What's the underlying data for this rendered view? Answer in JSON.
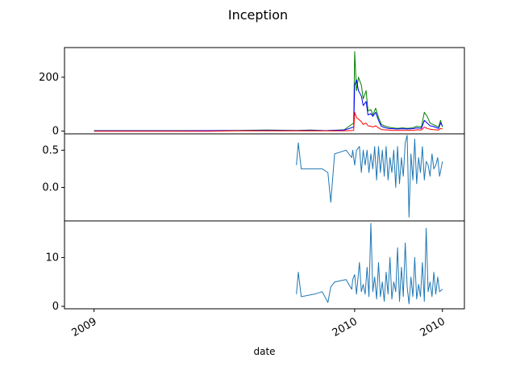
{
  "figure_title": "Inception",
  "xlabel": "date",
  "x_tick_labels": [
    "2009",
    "2010",
    "2010"
  ],
  "chart_data": [
    {
      "type": "line",
      "panel": "top",
      "xlabel": "date",
      "ylabel": "",
      "xlim": [
        "2008-12-01",
        "2010-01-24"
      ],
      "ylim": [
        -10,
        310
      ],
      "yticks": [
        0,
        200
      ],
      "x_ticks": [
        "2009-01-01",
        "2009-10-01",
        "2010-01-01"
      ],
      "grid": false,
      "series": [
        {
          "color": "#008000",
          "x": [
            "2009-01-01",
            "2009-02-01",
            "2009-03-01",
            "2009-04-01",
            "2009-05-01",
            "2009-06-01",
            "2009-07-01",
            "2009-08-01",
            "2009-08-15",
            "2009-09-01",
            "2009-09-20",
            "2009-09-30",
            "2009-10-01",
            "2009-10-03",
            "2009-10-05",
            "2009-10-08",
            "2009-10-10",
            "2009-10-13",
            "2009-10-15",
            "2009-10-18",
            "2009-10-20",
            "2009-10-23",
            "2009-10-26",
            "2009-10-29",
            "2009-11-01",
            "2009-11-05",
            "2009-11-10",
            "2009-11-15",
            "2009-11-20",
            "2009-11-25",
            "2009-12-01",
            "2009-12-05",
            "2009-12-10",
            "2009-12-13",
            "2009-12-16",
            "2009-12-19",
            "2009-12-22",
            "2009-12-25",
            "2009-12-28",
            "2009-12-30",
            "2010-01-01"
          ],
          "values": [
            2,
            2,
            2,
            2,
            2,
            3,
            4,
            3,
            4,
            2,
            5,
            30,
            295,
            150,
            200,
            170,
            120,
            150,
            75,
            80,
            60,
            85,
            50,
            25,
            20,
            15,
            12,
            10,
            12,
            10,
            12,
            18,
            15,
            70,
            55,
            30,
            25,
            20,
            15,
            40,
            15
          ]
        },
        {
          "color": "#0000ff",
          "x": [
            "2009-01-01",
            "2009-02-01",
            "2009-03-01",
            "2009-04-01",
            "2009-05-01",
            "2009-06-01",
            "2009-07-01",
            "2009-08-01",
            "2009-08-15",
            "2009-09-01",
            "2009-09-20",
            "2009-09-30",
            "2009-10-01",
            "2009-10-03",
            "2009-10-05",
            "2009-10-08",
            "2009-10-10",
            "2009-10-13",
            "2009-10-15",
            "2009-10-18",
            "2009-10-20",
            "2009-10-23",
            "2009-10-26",
            "2009-10-29",
            "2009-11-01",
            "2009-11-05",
            "2009-11-10",
            "2009-11-15",
            "2009-11-20",
            "2009-11-25",
            "2009-12-01",
            "2009-12-05",
            "2009-12-10",
            "2009-12-13",
            "2009-12-16",
            "2009-12-19",
            "2009-12-22",
            "2009-12-25",
            "2009-12-28",
            "2009-12-30",
            "2010-01-01"
          ],
          "values": [
            1,
            1,
            1,
            1,
            2,
            2,
            3,
            2,
            3,
            2,
            4,
            15,
            170,
            190,
            150,
            130,
            95,
            110,
            60,
            65,
            55,
            70,
            40,
            18,
            14,
            10,
            9,
            8,
            9,
            8,
            9,
            12,
            10,
            40,
            30,
            20,
            18,
            14,
            10,
            30,
            20
          ]
        },
        {
          "color": "#ff0000",
          "x": [
            "2009-01-01",
            "2009-02-01",
            "2009-03-01",
            "2009-04-01",
            "2009-05-01",
            "2009-06-01",
            "2009-07-01",
            "2009-08-01",
            "2009-08-15",
            "2009-09-01",
            "2009-09-20",
            "2009-09-30",
            "2009-10-01",
            "2009-10-03",
            "2009-10-05",
            "2009-10-08",
            "2009-10-10",
            "2009-10-13",
            "2009-10-15",
            "2009-10-18",
            "2009-10-20",
            "2009-10-23",
            "2009-10-26",
            "2009-10-29",
            "2009-11-01",
            "2009-11-05",
            "2009-11-10",
            "2009-11-15",
            "2009-11-20",
            "2009-11-25",
            "2009-12-01",
            "2009-12-05",
            "2009-12-10",
            "2009-12-13",
            "2009-12-16",
            "2009-12-19",
            "2009-12-22",
            "2009-12-25",
            "2009-12-28",
            "2009-12-30",
            "2010-01-01"
          ],
          "values": [
            0,
            0,
            0,
            0,
            0,
            1,
            1,
            1,
            1,
            1,
            1,
            3,
            70,
            50,
            45,
            35,
            25,
            30,
            20,
            18,
            15,
            20,
            12,
            6,
            5,
            4,
            3,
            3,
            3,
            3,
            3,
            5,
            4,
            15,
            10,
            7,
            6,
            5,
            4,
            10,
            8
          ]
        }
      ]
    },
    {
      "type": "line",
      "panel": "middle",
      "ylim": [
        -0.45,
        0.72
      ],
      "yticks": [
        0.0,
        0.5
      ],
      "grid": false,
      "series": [
        {
          "color": "#1f77b4",
          "x": [
            "2009-08-01",
            "2009-08-03",
            "2009-08-06",
            "2009-08-20",
            "2009-08-28",
            "2009-09-03",
            "2009-09-06",
            "2009-09-10",
            "2009-09-22",
            "2009-09-28",
            "2009-09-29",
            "2009-10-01",
            "2009-10-03",
            "2009-10-06",
            "2009-10-08",
            "2009-10-10",
            "2009-10-12",
            "2009-10-14",
            "2009-10-16",
            "2009-10-18",
            "2009-10-20",
            "2009-10-22",
            "2009-10-24",
            "2009-10-26",
            "2009-10-28",
            "2009-10-30",
            "2009-11-01",
            "2009-11-03",
            "2009-11-05",
            "2009-11-07",
            "2009-11-09",
            "2009-11-11",
            "2009-11-13",
            "2009-11-15",
            "2009-11-17",
            "2009-11-19",
            "2009-11-21",
            "2009-11-23",
            "2009-11-25",
            "2009-11-27",
            "2009-11-29",
            "2009-12-01",
            "2009-12-03",
            "2009-12-05",
            "2009-12-07",
            "2009-12-09",
            "2009-12-11",
            "2009-12-13",
            "2009-12-15",
            "2009-12-17",
            "2009-12-19",
            "2009-12-21",
            "2009-12-23",
            "2009-12-25",
            "2009-12-27",
            "2009-12-29",
            "2010-01-01"
          ],
          "values": [
            0.3,
            0.6,
            0.25,
            0.25,
            0.25,
            0.2,
            -0.2,
            0.45,
            0.5,
            0.4,
            0.5,
            0.3,
            0.5,
            0.55,
            0.2,
            0.5,
            0.3,
            0.5,
            0.2,
            0.45,
            0.25,
            0.55,
            0.1,
            0.55,
            0.2,
            0.5,
            0.15,
            0.55,
            0.1,
            0.4,
            0.2,
            0.5,
            0.0,
            0.55,
            0.05,
            0.4,
            0.15,
            0.6,
            0.7,
            -0.4,
            0.45,
            0.1,
            0.65,
            0.05,
            0.4,
            0.2,
            0.55,
            0.1,
            0.35,
            0.3,
            0.15,
            0.45,
            0.25,
            0.3,
            0.4,
            0.15,
            0.35
          ]
        }
      ]
    },
    {
      "type": "line",
      "panel": "bottom",
      "ylim": [
        -0.5,
        17.5
      ],
      "yticks": [
        0,
        10
      ],
      "grid": false,
      "series": [
        {
          "color": "#1f77b4",
          "x": [
            "2009-08-01",
            "2009-08-03",
            "2009-08-06",
            "2009-08-20",
            "2009-08-28",
            "2009-09-03",
            "2009-09-06",
            "2009-09-10",
            "2009-09-22",
            "2009-09-28",
            "2009-09-29",
            "2009-10-01",
            "2009-10-03",
            "2009-10-06",
            "2009-10-08",
            "2009-10-10",
            "2009-10-12",
            "2009-10-14",
            "2009-10-16",
            "2009-10-18",
            "2009-10-20",
            "2009-10-22",
            "2009-10-24",
            "2009-10-26",
            "2009-10-28",
            "2009-10-30",
            "2009-11-01",
            "2009-11-03",
            "2009-11-05",
            "2009-11-07",
            "2009-11-09",
            "2009-11-11",
            "2009-11-13",
            "2009-11-15",
            "2009-11-17",
            "2009-11-19",
            "2009-11-21",
            "2009-11-23",
            "2009-11-25",
            "2009-11-27",
            "2009-11-29",
            "2009-12-01",
            "2009-12-03",
            "2009-12-05",
            "2009-12-07",
            "2009-12-09",
            "2009-12-11",
            "2009-12-13",
            "2009-12-15",
            "2009-12-17",
            "2009-12-19",
            "2009-12-21",
            "2009-12-23",
            "2009-12-25",
            "2009-12-27",
            "2009-12-29",
            "2010-01-01"
          ],
          "values": [
            2.5,
            7.0,
            2.0,
            2.5,
            3.0,
            0.8,
            4.0,
            5.0,
            5.5,
            3.5,
            5.5,
            6.5,
            2.5,
            9.0,
            3.0,
            4.5,
            2.5,
            8.0,
            2.0,
            17.0,
            3.0,
            6.0,
            1.5,
            9.0,
            2.0,
            5.0,
            1.0,
            7.0,
            2.5,
            10.0,
            1.5,
            5.0,
            3.0,
            12.0,
            1.0,
            8.0,
            2.0,
            13.0,
            4.0,
            0.5,
            6.0,
            2.0,
            10.0,
            1.5,
            4.5,
            2.0,
            9.0,
            1.0,
            16.0,
            3.0,
            5.0,
            2.0,
            7.0,
            2.5,
            6.0,
            3.0,
            3.5
          ]
        }
      ]
    }
  ]
}
